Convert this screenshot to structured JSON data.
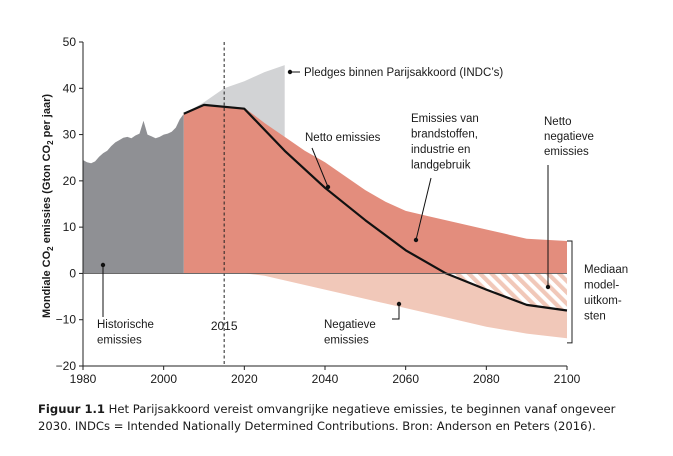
{
  "chart_data": {
    "type": "area",
    "xlim": [
      1980,
      2100
    ],
    "ylim": [
      -20,
      50
    ],
    "xticks": [
      1980,
      2000,
      2020,
      2040,
      2060,
      2080,
      2100
    ],
    "yticks": [
      50,
      40,
      30,
      20,
      10,
      0,
      -10,
      -20
    ],
    "ylabel_parts": [
      "Mondiale CO",
      "2",
      " emissies (Gton CO",
      "2",
      " per jaar)"
    ],
    "reference_line": {
      "x": 2015,
      "label": "2015"
    },
    "series": [
      {
        "label": "Historische emissies",
        "color": "#8f9094",
        "x": [
          1980,
          1981,
          1982,
          1983,
          1984,
          1985,
          1986,
          1987,
          1988,
          1989,
          1990,
          1991,
          1992,
          1993,
          1994,
          1995,
          1996,
          1997,
          1998,
          1999,
          2000,
          2001,
          2002,
          2003,
          2004,
          2005
        ],
        "y": [
          24.5,
          24,
          23.8,
          24.2,
          25.2,
          26,
          26.5,
          27.5,
          28.3,
          28.8,
          29.3,
          29.5,
          29.2,
          29.8,
          30.2,
          33,
          30,
          29.6,
          29.2,
          29.5,
          30,
          30.2,
          30.6,
          31.5,
          33.3,
          34.5
        ]
      },
      {
        "label": "Pledges binnen Parijsakkoord (INDC's)",
        "color": "#d2d3d5",
        "x": [
          2005,
          2010,
          2015,
          2020,
          2025,
          2030
        ],
        "top": [
          34.5,
          37,
          40,
          41.5,
          43.5,
          45
        ],
        "bottom": [
          34.5,
          36.2,
          36,
          35.5,
          31,
          27
        ]
      },
      {
        "label": "Emissies van brandstoffen, industrie en landgebruik",
        "color": "#e38d7d",
        "x": [
          2005,
          2010,
          2015,
          2020,
          2025,
          2030,
          2035,
          2040,
          2045,
          2050,
          2055,
          2060,
          2065,
          2070,
          2080,
          2090,
          2100
        ],
        "y": [
          34.5,
          36.4,
          36.2,
          35.8,
          32.5,
          29.5,
          26.5,
          24,
          21,
          18,
          15.5,
          13.5,
          12.5,
          11.5,
          9.5,
          7.5,
          7
        ]
      },
      {
        "label": "Negatieve emissies",
        "color": "#f1c8b9",
        "x": [
          2020,
          2025,
          2030,
          2035,
          2040,
          2045,
          2050,
          2055,
          2060,
          2065,
          2070,
          2080,
          2090,
          2100
        ],
        "y": [
          0,
          -0.5,
          -1.5,
          -2.5,
          -3.5,
          -4.5,
          -5.5,
          -6.5,
          -7.5,
          -8.5,
          -9.5,
          -11.5,
          -13,
          -14
        ]
      },
      {
        "label": "Netto emissies",
        "color": "#111111",
        "x": [
          2005,
          2010,
          2020,
          2030,
          2040,
          2050,
          2060,
          2070,
          2080,
          2090,
          2100
        ],
        "y": [
          34.5,
          36.4,
          35.6,
          26.5,
          18.5,
          11.5,
          5,
          0,
          -3.5,
          -6.8,
          -8
        ]
      },
      {
        "label": "Netto negatieve emissies",
        "x": [
          2070,
          2080,
          2090,
          2100
        ],
        "y": [
          0,
          -3.5,
          -6.8,
          -8
        ]
      }
    ],
    "bracket": {
      "top": 7,
      "bottom": -15,
      "label_lines": [
        "Mediaan",
        "model-",
        "uitkom-",
        "sten"
      ]
    },
    "annotations": {
      "historische": [
        "Historische",
        "emissies"
      ],
      "pledges": "Pledges binnen Parijsakkoord (INDC’s)",
      "netto": "Netto emissies",
      "brandstoffen": [
        "Emissies van",
        "brandstoffen,",
        "industrie en",
        "landgebruik"
      ],
      "netto_negatief": [
        "Netto",
        "negatieve",
        "emissies"
      ],
      "negatief": [
        "Negatieve",
        "emissies"
      ]
    }
  },
  "caption": {
    "label": "Figuur 1.1",
    "text": " Het Parijsakkoord vereist omvangrijke negatieve emissies, te beginnen vanaf ongeveer 2030. INDCs = Intended Nationally Determined Contributions. Bron: Anderson en Peters (2016)."
  }
}
